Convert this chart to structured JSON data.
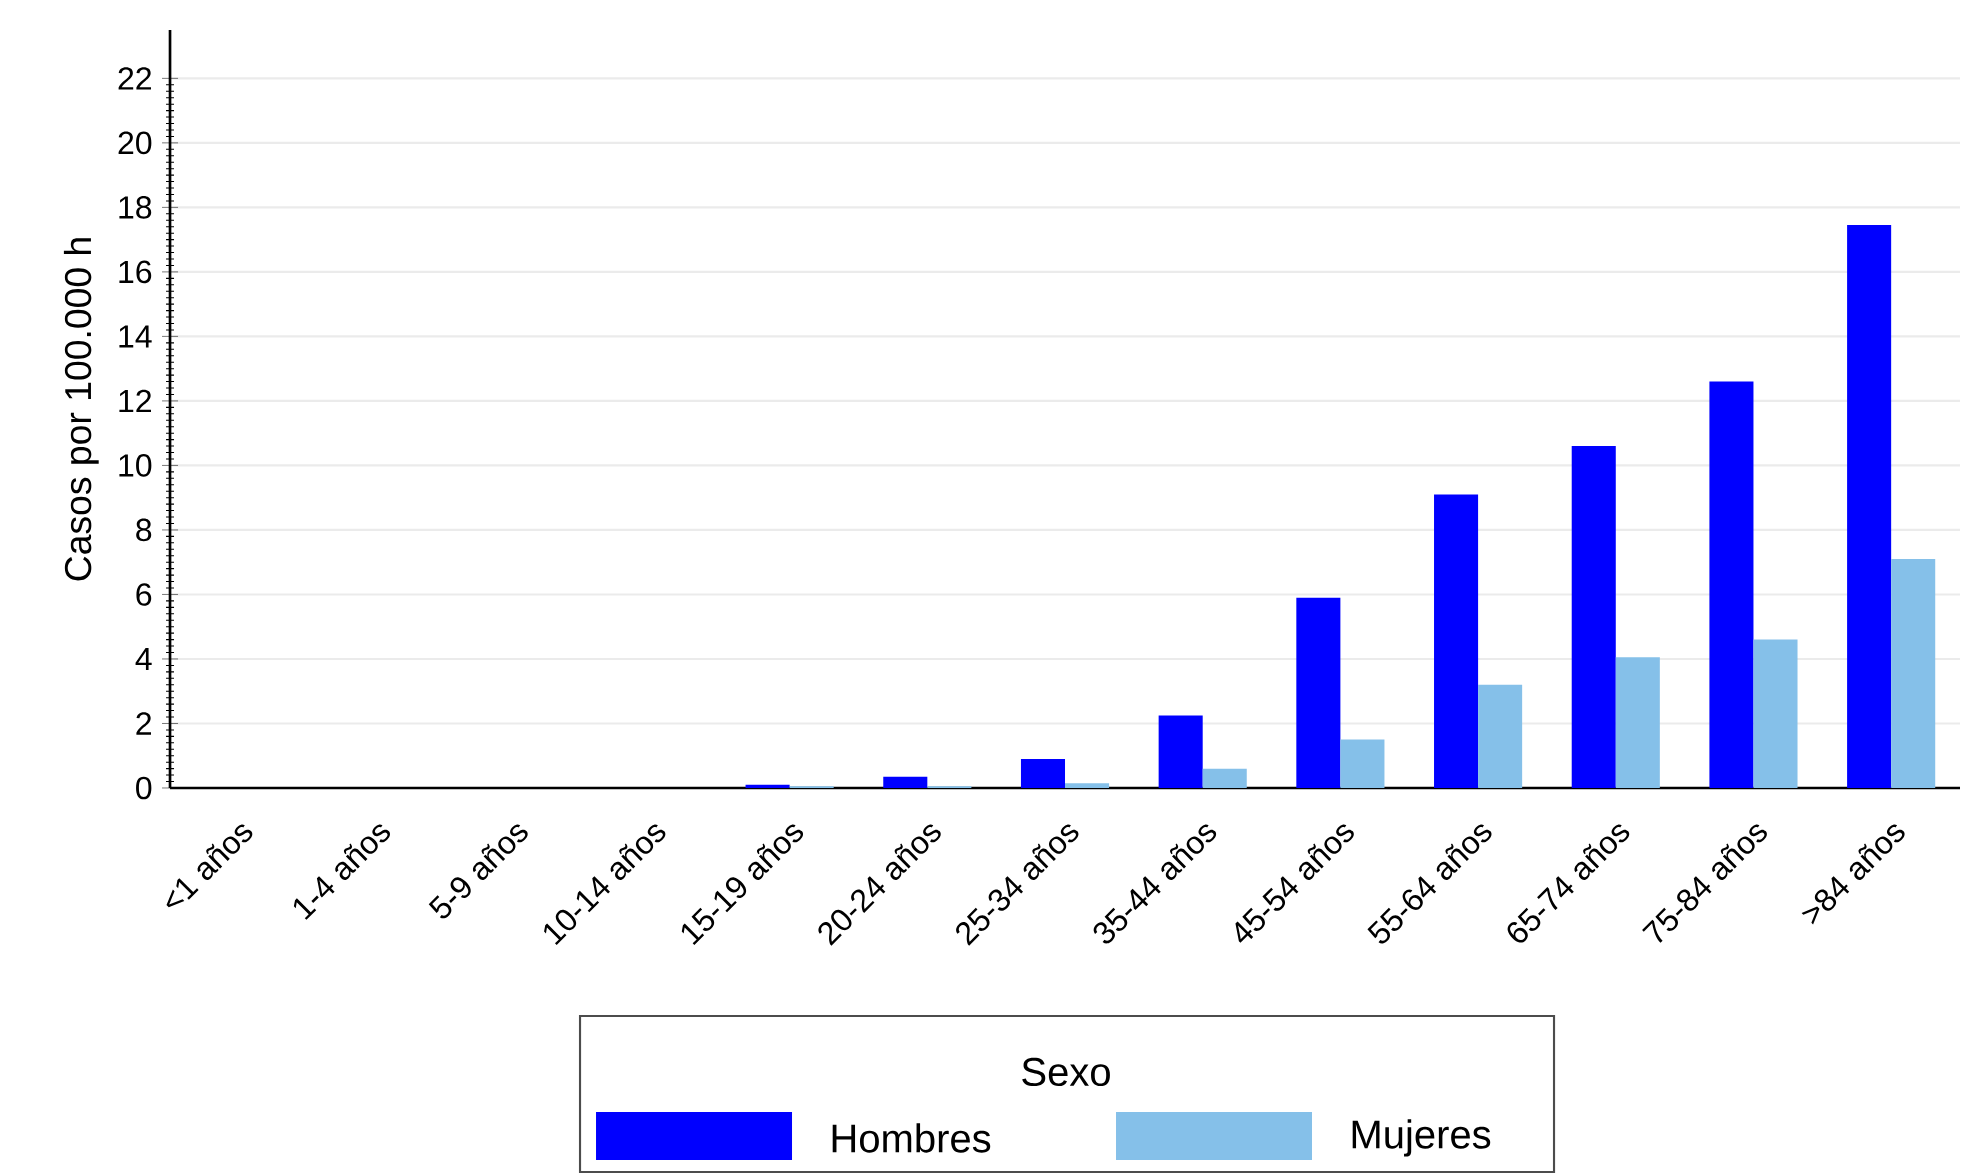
{
  "chart_data": {
    "type": "bar",
    "ylabel": "Casos por 100.000 h",
    "legend_title": "Sexo",
    "categories": [
      "<1 años",
      "1-4 años",
      "5-9 años",
      "10-14 años",
      "15-19 años",
      "20-24 años",
      "25-34 años",
      "35-44 años",
      "45-54 años",
      "55-64 años",
      "65-74 años",
      "75-84 años",
      ">84 años"
    ],
    "series": [
      {
        "name": "Hombres",
        "color": "#0000ff",
        "values": [
          0,
          0,
          0,
          0,
          0.1,
          0.35,
          0.9,
          2.25,
          5.9,
          9.1,
          10.6,
          12.6,
          17.45
        ]
      },
      {
        "name": "Mujeres",
        "color": "#85c0e9",
        "values": [
          0,
          0,
          0,
          0,
          0.05,
          0.05,
          0.15,
          0.6,
          1.5,
          3.2,
          4.05,
          4.6,
          7.1
        ]
      }
    ],
    "ylim": [
      0,
      23.5
    ],
    "yticks": [
      0,
      2,
      4,
      6,
      8,
      10,
      12,
      14,
      16,
      18,
      20,
      22
    ],
    "grid": "y",
    "legend": "bottom"
  }
}
